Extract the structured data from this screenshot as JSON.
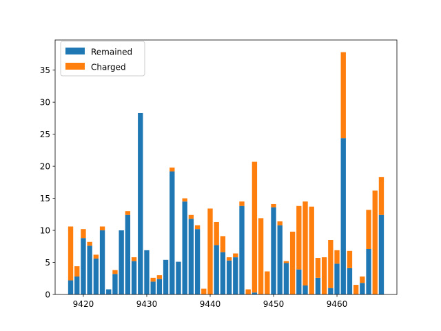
{
  "chart_data": {
    "type": "bar",
    "stacked": true,
    "title": "",
    "xlabel": "",
    "ylabel": "",
    "x": [
      9418,
      9419,
      9420,
      9421,
      9422,
      9423,
      9424,
      9425,
      9426,
      9427,
      9428,
      9429,
      9430,
      9431,
      9432,
      9433,
      9434,
      9435,
      9436,
      9437,
      9438,
      9439,
      9440,
      9441,
      9442,
      9443,
      9444,
      9445,
      9446,
      9447,
      9448,
      9449,
      9450,
      9451,
      9452,
      9453,
      9454,
      9455,
      9456,
      9457,
      9458,
      9459,
      9460,
      9461,
      9462,
      9463,
      9464,
      9465,
      9466,
      9467
    ],
    "series": [
      {
        "name": "Remained",
        "color": "#1f77b4",
        "values": [
          2.2,
          2.8,
          8.8,
          7.6,
          5.6,
          10.0,
          0.8,
          3.2,
          10.0,
          12.4,
          5.2,
          28.3,
          6.9,
          2.0,
          2.4,
          5.4,
          19.2,
          5.1,
          14.5,
          11.8,
          10.2,
          0.0,
          0.0,
          7.7,
          6.6,
          5.3,
          5.8,
          13.8,
          0.0,
          0.3,
          0.0,
          0.0,
          13.6,
          10.8,
          4.9,
          0.0,
          3.9,
          1.4,
          0.0,
          2.6,
          0.0,
          1.0,
          4.8,
          24.4,
          4.1,
          0.0,
          1.8,
          7.1,
          0.0,
          12.4
        ]
      },
      {
        "name": "Charged",
        "color": "#ff7f0e",
        "values": [
          8.4,
          1.6,
          1.4,
          0.6,
          0.6,
          0.6,
          0.0,
          0.6,
          0.0,
          0.6,
          0.6,
          0.0,
          0.0,
          0.6,
          0.6,
          0.0,
          0.6,
          0.0,
          0.5,
          0.6,
          0.6,
          0.9,
          13.4,
          3.6,
          2.5,
          0.5,
          0.6,
          0.7,
          0.8,
          20.4,
          11.9,
          3.6,
          0.5,
          0.6,
          0.3,
          9.8,
          9.9,
          13.1,
          13.7,
          3.1,
          5.8,
          7.5,
          2.1,
          13.4,
          2.7,
          1.5,
          1.0,
          6.1,
          16.2,
          5.9
        ]
      }
    ],
    "xticks": [
      "9420",
      "9430",
      "9440",
      "9450",
      "9460"
    ],
    "yticks": [
      "0",
      "5",
      "10",
      "15",
      "20",
      "25",
      "30",
      "35"
    ],
    "xlim": [
      9415.55,
      9469.45
    ],
    "ylim": [
      0,
      39.7
    ],
    "legend": {
      "location": "upper-left"
    },
    "grid": false
  }
}
